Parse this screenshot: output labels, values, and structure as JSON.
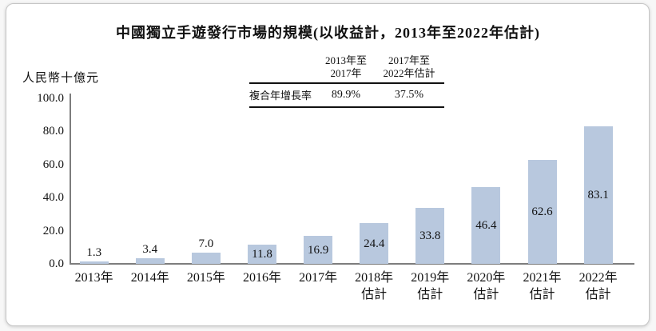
{
  "cagr_table": {
    "row_label": "複合年增長率",
    "columns": [
      {
        "lines": [
          "2013年至",
          "2017年"
        ],
        "value": "89.9%"
      },
      {
        "lines": [
          "2017年至",
          "2022年估計"
        ],
        "value": "37.5%"
      }
    ]
  },
  "chart_data": {
    "type": "bar",
    "title": "中國獨立手遊發行市場的規模(以收益計，2013年至2022年估計)",
    "ylabel": "人民幣十億元",
    "xlabel": "",
    "categories": [
      "2013年",
      "2014年",
      "2015年",
      "2016年",
      "2017年",
      "2018年估計",
      "2019年估計",
      "2020年估計",
      "2021年估計",
      "2022年估計"
    ],
    "values": [
      1.3,
      3.4,
      7.0,
      11.8,
      16.9,
      24.4,
      33.8,
      46.4,
      62.6,
      83.1
    ],
    "y_ticks": [
      "0.0",
      "20.0",
      "40.0",
      "60.0",
      "80.0",
      "100.0"
    ],
    "ylim": [
      0,
      100
    ],
    "grid": false,
    "legend": "none",
    "bar_color": "#b8c8de",
    "axis_color": "#7d7d7d",
    "text_color": "#111111"
  }
}
